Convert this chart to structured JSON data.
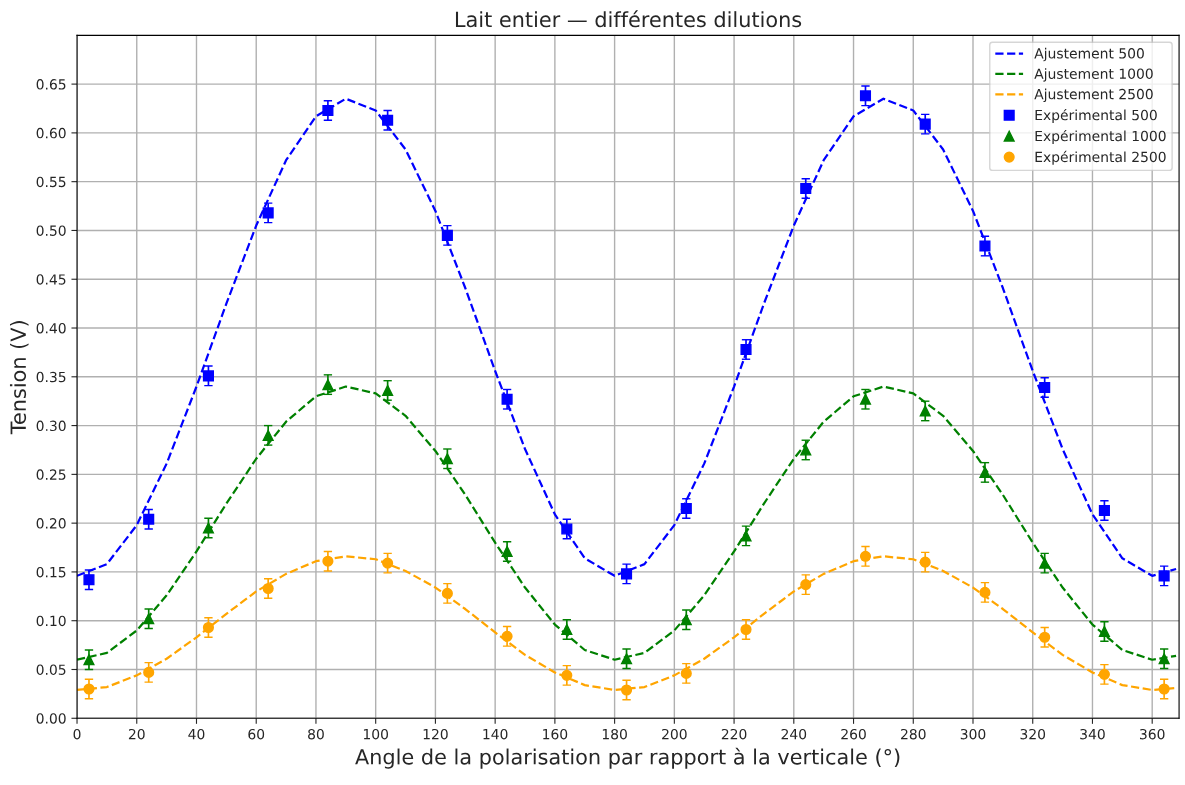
{
  "chart_data": {
    "type": "scatter",
    "title": "Lait entier — différentes dilutions",
    "xlabel": "Angle de la polarisation par rapport à la verticale (°)",
    "ylabel": "Tension (V)",
    "xlim": [
      0,
      369
    ],
    "xticks": [
      0,
      20,
      40,
      60,
      80,
      100,
      120,
      140,
      160,
      180,
      200,
      220,
      240,
      260,
      280,
      300,
      320,
      340,
      360
    ],
    "ylim": [
      0,
      0.7
    ],
    "yticks": [
      {
        "value": 0,
        "label": "0.00"
      },
      {
        "value": 0.05,
        "label": "0.05"
      },
      {
        "value": 0.1,
        "label": "0.10"
      },
      {
        "value": 0.15,
        "label": "0.15"
      },
      {
        "value": 0.2,
        "label": "0.20"
      },
      {
        "value": 0.25,
        "label": "0.25"
      },
      {
        "value": 0.3,
        "label": "0.30"
      },
      {
        "value": 0.35,
        "label": "0.35"
      },
      {
        "value": 0.4,
        "label": "0.40"
      },
      {
        "value": 0.45,
        "label": "0.45"
      },
      {
        "value": 0.5,
        "label": "0.50"
      },
      {
        "value": 0.55,
        "label": "0.55"
      },
      {
        "value": 0.6,
        "label": "0.60"
      },
      {
        "value": 0.65,
        "label": "0.65"
      }
    ],
    "grid": true,
    "legend": "top right",
    "series": [
      {
        "name": "Ajustement 500",
        "type": "line",
        "line_style": "dashed",
        "marker": "none",
        "color": "#0000ff",
        "x": [
          0,
          10,
          20,
          30,
          40,
          50,
          60,
          70,
          80,
          90,
          100,
          110,
          120,
          130,
          140,
          150,
          160,
          170,
          180,
          190,
          200,
          210,
          220,
          230,
          240,
          250,
          260,
          270,
          280,
          290,
          300,
          310,
          320,
          330,
          340,
          350,
          360,
          368
        ],
        "values": [
          0.146,
          0.158,
          0.198,
          0.261,
          0.34,
          0.425,
          0.505,
          0.572,
          0.617,
          0.635,
          0.623,
          0.583,
          0.52,
          0.441,
          0.356,
          0.276,
          0.209,
          0.164,
          0.146,
          0.158,
          0.198,
          0.261,
          0.34,
          0.425,
          0.505,
          0.572,
          0.617,
          0.635,
          0.623,
          0.583,
          0.52,
          0.441,
          0.356,
          0.276,
          0.209,
          0.164,
          0.146,
          0.153
        ]
      },
      {
        "name": "Ajustement 1000",
        "type": "line",
        "line_style": "dashed",
        "marker": "none",
        "color": "#008000",
        "x": [
          0,
          10,
          20,
          30,
          40,
          50,
          60,
          70,
          80,
          90,
          100,
          110,
          120,
          130,
          140,
          150,
          160,
          170,
          180,
          190,
          200,
          210,
          220,
          230,
          240,
          250,
          260,
          270,
          280,
          290,
          300,
          310,
          320,
          330,
          340,
          350,
          360,
          368
        ],
        "values": [
          0.06,
          0.067,
          0.09,
          0.126,
          0.171,
          0.22,
          0.266,
          0.304,
          0.33,
          0.34,
          0.333,
          0.31,
          0.274,
          0.229,
          0.18,
          0.134,
          0.096,
          0.07,
          0.06,
          0.067,
          0.09,
          0.126,
          0.171,
          0.22,
          0.266,
          0.304,
          0.33,
          0.34,
          0.333,
          0.31,
          0.274,
          0.229,
          0.18,
          0.134,
          0.096,
          0.07,
          0.06,
          0.064
        ]
      },
      {
        "name": "Ajustement 2500",
        "type": "line",
        "line_style": "dashed",
        "marker": "none",
        "color": "#ffa500",
        "x": [
          0,
          10,
          20,
          30,
          40,
          50,
          60,
          70,
          80,
          90,
          100,
          110,
          120,
          130,
          140,
          150,
          160,
          170,
          180,
          190,
          200,
          210,
          220,
          230,
          240,
          250,
          260,
          270,
          280,
          290,
          300,
          310,
          320,
          330,
          340,
          350,
          360,
          368
        ],
        "values": [
          0.029,
          0.032,
          0.044,
          0.061,
          0.083,
          0.107,
          0.13,
          0.148,
          0.161,
          0.166,
          0.163,
          0.151,
          0.134,
          0.112,
          0.088,
          0.065,
          0.047,
          0.034,
          0.029,
          0.032,
          0.044,
          0.061,
          0.083,
          0.107,
          0.13,
          0.148,
          0.161,
          0.166,
          0.163,
          0.151,
          0.134,
          0.112,
          0.088,
          0.065,
          0.047,
          0.034,
          0.029,
          0.031
        ]
      },
      {
        "name": "Expérimental 500",
        "marker": "square",
        "color": "#0000ff",
        "x": [
          4,
          24,
          44,
          64,
          84,
          104,
          124,
          144,
          164,
          184,
          204,
          224,
          244,
          264,
          284,
          304,
          324,
          344,
          364
        ],
        "values": [
          0.142,
          0.204,
          0.351,
          0.518,
          0.623,
          0.613,
          0.495,
          0.327,
          0.194,
          0.148,
          0.215,
          0.378,
          0.543,
          0.638,
          0.609,
          0.484,
          0.339,
          0.213,
          0.146
        ],
        "errors": [
          0.01,
          0.01,
          0.01,
          0.01,
          0.01,
          0.01,
          0.01,
          0.01,
          0.01,
          0.01,
          0.01,
          0.01,
          0.01,
          0.01,
          0.01,
          0.01,
          0.01,
          0.01,
          0.01
        ]
      },
      {
        "name": "Expérimental 1000",
        "marker": "triangle",
        "color": "#008000",
        "x": [
          4,
          24,
          44,
          64,
          84,
          104,
          124,
          144,
          164,
          184,
          204,
          224,
          244,
          264,
          284,
          304,
          324,
          344,
          364
        ],
        "values": [
          0.06,
          0.102,
          0.195,
          0.29,
          0.342,
          0.336,
          0.266,
          0.171,
          0.091,
          0.061,
          0.101,
          0.187,
          0.275,
          0.327,
          0.315,
          0.252,
          0.159,
          0.089,
          0.061
        ],
        "errors": [
          0.01,
          0.01,
          0.01,
          0.01,
          0.01,
          0.01,
          0.01,
          0.01,
          0.01,
          0.01,
          0.01,
          0.01,
          0.01,
          0.01,
          0.01,
          0.01,
          0.01,
          0.01,
          0.01
        ]
      },
      {
        "name": "Expérimental 2500",
        "marker": "circle",
        "color": "#ffa500",
        "x": [
          4,
          24,
          44,
          64,
          84,
          104,
          124,
          144,
          164,
          184,
          204,
          224,
          244,
          264,
          284,
          304,
          324,
          344,
          364
        ],
        "values": [
          0.03,
          0.047,
          0.093,
          0.133,
          0.161,
          0.159,
          0.128,
          0.084,
          0.044,
          0.029,
          0.046,
          0.091,
          0.137,
          0.166,
          0.16,
          0.129,
          0.083,
          0.045,
          0.03
        ],
        "errors": [
          0.01,
          0.01,
          0.01,
          0.01,
          0.01,
          0.01,
          0.01,
          0.01,
          0.01,
          0.01,
          0.01,
          0.01,
          0.01,
          0.01,
          0.01,
          0.01,
          0.01,
          0.01,
          0.01
        ]
      }
    ]
  }
}
